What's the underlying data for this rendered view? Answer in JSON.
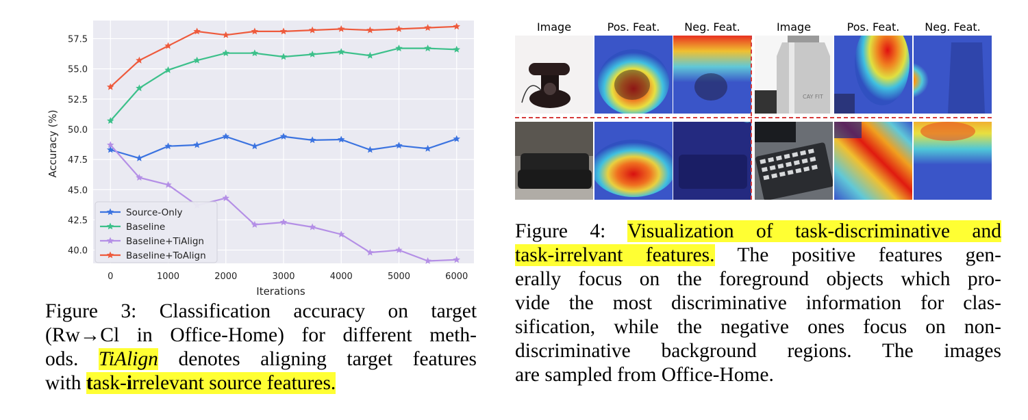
{
  "figure3": {
    "caption_prefix": "Figure 3:",
    "caption_line1": "Classification accuracy on target",
    "caption_line2": "(Rw→Cl in Office-Home) for different meth-",
    "caption_line3a": "ods.",
    "caption_line3_italic": "TiAlign",
    "caption_line3b": "denotes aligning target features",
    "caption_line4a": "with",
    "caption_line4_bold1": "t",
    "caption_line4b": "ask-",
    "caption_line4_bold2": "i",
    "caption_line4c": "rrelevant source features."
  },
  "chart_data": {
    "type": "line",
    "xlabel": "Iterations",
    "ylabel": "Accuracy (%)",
    "x": [
      0,
      500,
      1000,
      1500,
      2000,
      2500,
      3000,
      3500,
      4000,
      4500,
      5000,
      5500,
      6000
    ],
    "xticks": [
      "0",
      "1000",
      "2000",
      "3000",
      "4000",
      "5000",
      "6000"
    ],
    "yticks": [
      "40.0",
      "42.5",
      "45.0",
      "47.5",
      "50.0",
      "52.5",
      "55.0",
      "57.5"
    ],
    "ylim": [
      38.9,
      59.0
    ],
    "xlim": [
      -300,
      6300
    ],
    "grid": true,
    "legend_position": "lower-left",
    "series": [
      {
        "name": "Source-Only",
        "color": "#3b73e0",
        "values": [
          48.3,
          47.6,
          48.6,
          48.7,
          49.4,
          48.6,
          49.4,
          49.1,
          49.15,
          48.3,
          48.65,
          48.4,
          49.2
        ]
      },
      {
        "name": "Baseline",
        "color": "#3cc08a",
        "values": [
          50.7,
          53.4,
          54.9,
          55.7,
          56.3,
          56.3,
          56.0,
          56.2,
          56.4,
          56.1,
          56.7,
          56.7,
          56.6
        ]
      },
      {
        "name": "Baseline+TiAlign",
        "color": "#b48fe6",
        "values": [
          48.7,
          46.0,
          45.4,
          43.7,
          44.3,
          42.1,
          42.3,
          41.9,
          41.3,
          39.8,
          40.0,
          39.1,
          39.2
        ]
      },
      {
        "name": "Baseline+ToAlign",
        "color": "#ee5a3c",
        "values": [
          53.5,
          55.7,
          56.9,
          58.1,
          57.8,
          58.1,
          58.1,
          58.2,
          58.3,
          58.2,
          58.3,
          58.4,
          58.5
        ]
      }
    ]
  },
  "figure4": {
    "col_headers": [
      "Image",
      "Pos. Feat.",
      "Neg. Feat.",
      "Image",
      "Pos. Feat.",
      "Neg. Feat."
    ],
    "caption_prefix": "Figure 4:",
    "caption_hl1": "Visualization of task-discriminative and",
    "caption_hl2": "task-irrelvant features.",
    "caption_rest1": "The positive features gen-",
    "caption_rest2": "erally focus on the foreground objects which pro-",
    "caption_rest3": "vide the most discriminative information for clas-",
    "caption_rest4": "sification, while the negative ones focus on non-",
    "caption_rest5": "discriminative background regions.  The images",
    "caption_rest6": "are sampled from Office-Home.",
    "tile_labels": {
      "bottle_text": "CAY FIT"
    }
  }
}
